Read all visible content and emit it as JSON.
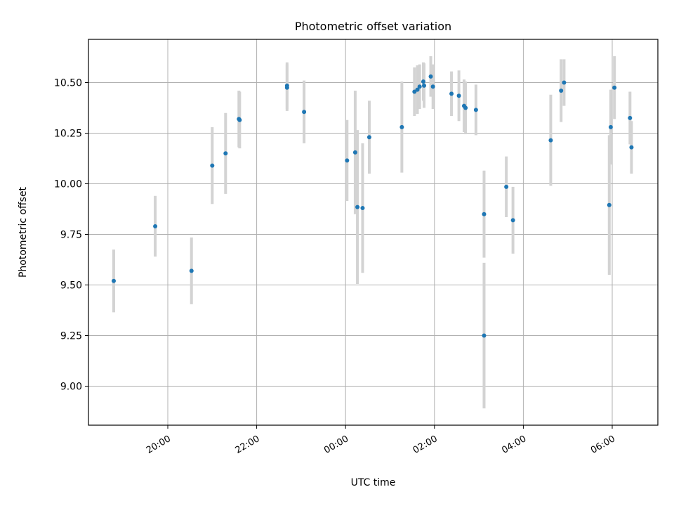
{
  "chart_data": {
    "type": "scatter",
    "title": "Photometric offset variation",
    "xlabel": "UTC time",
    "ylabel": "Photometric offset",
    "x_tick_labels": [
      "20:00",
      "22:00",
      "00:00",
      "02:00",
      "04:00",
      "06:00"
    ],
    "y_tick_labels": [
      "9.00",
      "9.25",
      "9.50",
      "9.75",
      "10.00",
      "10.25",
      "10.50"
    ],
    "grid": true,
    "legend": "none",
    "colors": {
      "points": "#1f77b4",
      "error_bars": "#d3d3d3",
      "grid": "#b0b0b0"
    },
    "series": [
      {
        "points": [
          {
            "x": "18:47",
            "y": 9.52,
            "yerr": 0.155
          },
          {
            "x": "19:43",
            "y": 9.79,
            "yerr": 0.15
          },
          {
            "x": "20:32",
            "y": 9.57,
            "yerr": 0.165
          },
          {
            "x": "21:00",
            "y": 10.09,
            "yerr": 0.19
          },
          {
            "x": "21:18",
            "y": 10.15,
            "yerr": 0.2
          },
          {
            "x": "21:36",
            "y": 10.32,
            "yerr": 0.14
          },
          {
            "x": "21:37",
            "y": 10.315,
            "yerr": 0.14
          },
          {
            "x": "22:41",
            "y": 10.485,
            "yerr": 0.115
          },
          {
            "x": "22:41",
            "y": 10.475,
            "yerr": 0.115
          },
          {
            "x": "23:04",
            "y": 10.355,
            "yerr": 0.155
          },
          {
            "x": "00:02",
            "y": 10.115,
            "yerr": 0.2
          },
          {
            "x": "00:13",
            "y": 10.155,
            "yerr": 0.305
          },
          {
            "x": "00:16",
            "y": 9.885,
            "yerr": 0.38
          },
          {
            "x": "00:23",
            "y": 9.88,
            "yerr": 0.32
          },
          {
            "x": "00:32",
            "y": 10.23,
            "yerr": 0.18
          },
          {
            "x": "01:16",
            "y": 10.28,
            "yerr": 0.225
          },
          {
            "x": "01:33",
            "y": 10.455,
            "yerr": 0.12
          },
          {
            "x": "01:37",
            "y": 10.465,
            "yerr": 0.12
          },
          {
            "x": "01:40",
            "y": 10.48,
            "yerr": 0.11
          },
          {
            "x": "01:45",
            "y": 10.505,
            "yerr": 0.095
          },
          {
            "x": "01:46",
            "y": 10.485,
            "yerr": 0.11
          },
          {
            "x": "01:55",
            "y": 10.53,
            "yerr": 0.1
          },
          {
            "x": "01:58",
            "y": 10.48,
            "yerr": 0.11
          },
          {
            "x": "02:23",
            "y": 10.445,
            "yerr": 0.11
          },
          {
            "x": "02:33",
            "y": 10.435,
            "yerr": 0.125
          },
          {
            "x": "02:40",
            "y": 10.385,
            "yerr": 0.13
          },
          {
            "x": "02:42",
            "y": 10.375,
            "yerr": 0.13
          },
          {
            "x": "02:56",
            "y": 10.365,
            "yerr": 0.125
          },
          {
            "x": "03:07",
            "y": 9.85,
            "yerr": 0.215
          },
          {
            "x": "03:07",
            "y": 9.25,
            "yerr": 0.36
          },
          {
            "x": "03:37",
            "y": 9.985,
            "yerr": 0.15
          },
          {
            "x": "03:46",
            "y": 9.82,
            "yerr": 0.165
          },
          {
            "x": "04:37",
            "y": 10.215,
            "yerr": 0.225
          },
          {
            "x": "04:51",
            "y": 10.46,
            "yerr": 0.155
          },
          {
            "x": "04:55",
            "y": 10.5,
            "yerr": 0.115
          },
          {
            "x": "05:56",
            "y": 9.895,
            "yerr": 0.345
          },
          {
            "x": "05:58",
            "y": 10.28,
            "yerr": 0.185
          },
          {
            "x": "06:03",
            "y": 10.475,
            "yerr": 0.155
          },
          {
            "x": "06:24",
            "y": 10.325,
            "yerr": 0.13
          },
          {
            "x": "06:26",
            "y": 10.18,
            "yerr": 0.13
          }
        ]
      }
    ]
  }
}
